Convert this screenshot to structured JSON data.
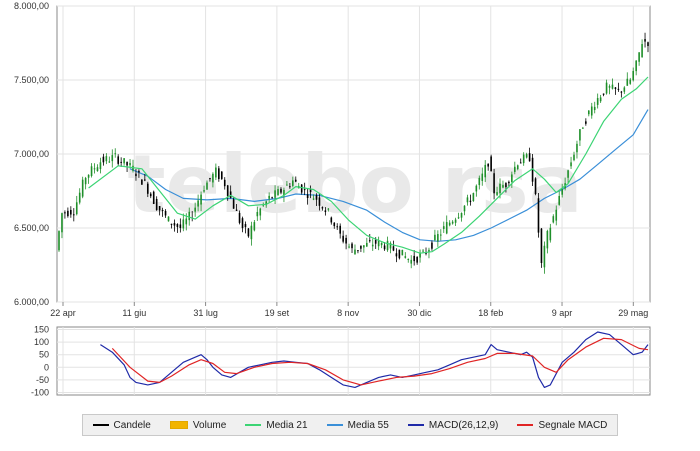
{
  "chart_data": [
    {
      "type": "candlestick",
      "y_ticks": [
        "8.000,00",
        "7.500,00",
        "7.000,00",
        "6.500,00",
        "6.000,00"
      ],
      "y_tick_values": [
        8000,
        7500,
        7000,
        6500,
        6000
      ],
      "ylim": [
        6000,
        8000
      ],
      "x_ticks": [
        "22 apr",
        "11 giu",
        "31 lug",
        "19 set",
        "8 nov",
        "30 dic",
        "18 feb",
        "9 apr",
        "29 mag"
      ],
      "grid": true,
      "watermark": "telebo rsa",
      "price_path": [
        [
          0,
          6350
        ],
        [
          2,
          6600
        ],
        [
          6,
          6620
        ],
        [
          10,
          6850
        ],
        [
          15,
          6950
        ],
        [
          20,
          6980
        ],
        [
          26,
          6900
        ],
        [
          30,
          6800
        ],
        [
          34,
          6650
        ],
        [
          38,
          6550
        ],
        [
          42,
          6500
        ],
        [
          46,
          6600
        ],
        [
          50,
          6780
        ],
        [
          54,
          6880
        ],
        [
          57,
          6800
        ],
        [
          60,
          6650
        ],
        [
          63,
          6500
        ],
        [
          65,
          6450
        ],
        [
          68,
          6600
        ],
        [
          72,
          6700
        ],
        [
          76,
          6750
        ],
        [
          80,
          6820
        ],
        [
          84,
          6750
        ],
        [
          88,
          6700
        ],
        [
          92,
          6600
        ],
        [
          96,
          6450
        ],
        [
          100,
          6350
        ],
        [
          104,
          6380
        ],
        [
          108,
          6400
        ],
        [
          112,
          6380
        ],
        [
          116,
          6330
        ],
        [
          120,
          6280
        ],
        [
          124,
          6320
        ],
        [
          128,
          6420
        ],
        [
          132,
          6520
        ],
        [
          136,
          6600
        ],
        [
          140,
          6700
        ],
        [
          144,
          6850
        ],
        [
          146,
          6950
        ],
        [
          148,
          6750
        ],
        [
          152,
          6800
        ],
        [
          156,
          6950
        ],
        [
          160,
          6980
        ],
        [
          162,
          6700
        ],
        [
          164,
          6250
        ],
        [
          166,
          6450
        ],
        [
          170,
          6700
        ],
        [
          174,
          6950
        ],
        [
          178,
          7200
        ],
        [
          182,
          7350
        ],
        [
          186,
          7450
        ],
        [
          190,
          7420
        ],
        [
          194,
          7500
        ],
        [
          196,
          7600
        ],
        [
          198,
          7760
        ]
      ],
      "media21_path": [
        [
          10,
          6770
        ],
        [
          20,
          6920
        ],
        [
          28,
          6900
        ],
        [
          34,
          6750
        ],
        [
          40,
          6600
        ],
        [
          46,
          6560
        ],
        [
          52,
          6650
        ],
        [
          58,
          6720
        ],
        [
          64,
          6650
        ],
        [
          70,
          6660
        ],
        [
          76,
          6720
        ],
        [
          80,
          6780
        ],
        [
          86,
          6760
        ],
        [
          92,
          6680
        ],
        [
          98,
          6550
        ],
        [
          104,
          6450
        ],
        [
          110,
          6400
        ],
        [
          116,
          6370
        ],
        [
          122,
          6330
        ],
        [
          126,
          6340
        ],
        [
          130,
          6390
        ],
        [
          136,
          6470
        ],
        [
          142,
          6580
        ],
        [
          148,
          6700
        ],
        [
          154,
          6820
        ],
        [
          160,
          6900
        ],
        [
          164,
          6830
        ],
        [
          168,
          6740
        ],
        [
          172,
          6800
        ],
        [
          178,
          7000
        ],
        [
          184,
          7220
        ],
        [
          190,
          7370
        ],
        [
          195,
          7440
        ],
        [
          199,
          7520
        ]
      ],
      "media55_path": [
        [
          24,
          6900
        ],
        [
          30,
          6850
        ],
        [
          36,
          6760
        ],
        [
          42,
          6700
        ],
        [
          50,
          6690
        ],
        [
          58,
          6700
        ],
        [
          66,
          6680
        ],
        [
          74,
          6700
        ],
        [
          80,
          6730
        ],
        [
          88,
          6720
        ],
        [
          96,
          6680
        ],
        [
          104,
          6620
        ],
        [
          110,
          6540
        ],
        [
          116,
          6470
        ],
        [
          122,
          6420
        ],
        [
          128,
          6410
        ],
        [
          134,
          6420
        ],
        [
          140,
          6450
        ],
        [
          146,
          6500
        ],
        [
          152,
          6560
        ],
        [
          158,
          6620
        ],
        [
          164,
          6700
        ],
        [
          170,
          6760
        ],
        [
          176,
          6830
        ],
        [
          182,
          6930
        ],
        [
          188,
          7030
        ],
        [
          194,
          7130
        ],
        [
          199,
          7300
        ]
      ]
    },
    {
      "type": "line",
      "y_ticks": [
        "150",
        "100",
        "50",
        "0",
        "-50",
        "-100"
      ],
      "y_tick_values": [
        150,
        100,
        50,
        0,
        -50,
        -100
      ],
      "ylim": [
        -110,
        160
      ],
      "grid": true,
      "series": [
        {
          "name": "MACD(26,12,9)",
          "color": "#1f2aa8",
          "points": [
            [
              14,
              90
            ],
            [
              18,
              60
            ],
            [
              22,
              10
            ],
            [
              24,
              -40
            ],
            [
              26,
              -60
            ],
            [
              30,
              -70
            ],
            [
              34,
              -60
            ],
            [
              38,
              -20
            ],
            [
              42,
              20
            ],
            [
              46,
              40
            ],
            [
              48,
              50
            ],
            [
              50,
              30
            ],
            [
              52,
              0
            ],
            [
              55,
              -30
            ],
            [
              58,
              -40
            ],
            [
              61,
              -20
            ],
            [
              64,
              0
            ],
            [
              68,
              10
            ],
            [
              72,
              20
            ],
            [
              76,
              25
            ],
            [
              80,
              20
            ],
            [
              84,
              15
            ],
            [
              88,
              -10
            ],
            [
              92,
              -40
            ],
            [
              96,
              -70
            ],
            [
              100,
              -80
            ],
            [
              104,
              -60
            ],
            [
              108,
              -40
            ],
            [
              112,
              -30
            ],
            [
              116,
              -40
            ],
            [
              120,
              -30
            ],
            [
              124,
              -20
            ],
            [
              128,
              -10
            ],
            [
              132,
              10
            ],
            [
              136,
              30
            ],
            [
              140,
              40
            ],
            [
              144,
              50
            ],
            [
              146,
              90
            ],
            [
              148,
              70
            ],
            [
              152,
              60
            ],
            [
              156,
              50
            ],
            [
              158,
              60
            ],
            [
              160,
              40
            ],
            [
              162,
              -40
            ],
            [
              164,
              -80
            ],
            [
              166,
              -70
            ],
            [
              170,
              20
            ],
            [
              174,
              60
            ],
            [
              178,
              110
            ],
            [
              182,
              140
            ],
            [
              186,
              130
            ],
            [
              190,
              90
            ],
            [
              194,
              50
            ],
            [
              197,
              60
            ],
            [
              199,
              90
            ]
          ]
        },
        {
          "name": "Segnale MACD",
          "color": "#e02525",
          "points": [
            [
              18,
              75
            ],
            [
              24,
              0
            ],
            [
              30,
              -55
            ],
            [
              34,
              -60
            ],
            [
              38,
              -35
            ],
            [
              44,
              10
            ],
            [
              48,
              30
            ],
            [
              52,
              15
            ],
            [
              56,
              -20
            ],
            [
              60,
              -25
            ],
            [
              66,
              0
            ],
            [
              72,
              15
            ],
            [
              78,
              20
            ],
            [
              84,
              15
            ],
            [
              90,
              -10
            ],
            [
              96,
              -50
            ],
            [
              102,
              -70
            ],
            [
              108,
              -55
            ],
            [
              114,
              -40
            ],
            [
              120,
              -35
            ],
            [
              126,
              -25
            ],
            [
              132,
              -5
            ],
            [
              138,
              20
            ],
            [
              144,
              35
            ],
            [
              148,
              55
            ],
            [
              154,
              55
            ],
            [
              160,
              45
            ],
            [
              164,
              0
            ],
            [
              168,
              -20
            ],
            [
              172,
              30
            ],
            [
              178,
              80
            ],
            [
              184,
              115
            ],
            [
              190,
              110
            ],
            [
              196,
              75
            ],
            [
              199,
              70
            ]
          ]
        }
      ]
    }
  ],
  "legend": [
    {
      "label": "Candele",
      "color": "#000000",
      "kind": "line"
    },
    {
      "label": "Volume",
      "color": "#f2b400",
      "kind": "box"
    },
    {
      "label": "Media 21",
      "color": "#3cd474",
      "kind": "line"
    },
    {
      "label": "Media 55",
      "color": "#3a8fd8",
      "kind": "line"
    },
    {
      "label": "MACD(26,12,9)",
      "color": "#1f2aa8",
      "kind": "line"
    },
    {
      "label": "Segnale MACD",
      "color": "#e02525",
      "kind": "line"
    }
  ],
  "colors": {
    "up_candle": "#1f8f2a",
    "down_candle": "#000000",
    "grid": "#e3e3e3",
    "axis": "#8a8a8a"
  }
}
